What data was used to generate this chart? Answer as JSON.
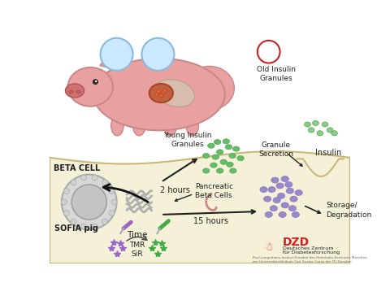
{
  "background_color": "#ffffff",
  "cell_bg_color": "#f5f0d8",
  "cell_border_color": "#c8b87a",
  "pig_color": "#e8a0a0",
  "pig_snout_color": "#d07070",
  "pancreas_color": "#c06040",
  "young_granule_color": "#66bb66",
  "young_granule_light": "#aaddaa",
  "old_granule_color": "#9988cc",
  "old_granule_light": "#ccbbee",
  "secretion_color": "#88cc88",
  "tmr_color": "#9966cc",
  "sir_color": "#44aa44",
  "dye_circle_color": "#cce8ff",
  "arrow_color": "#222222",
  "text_color": "#222222",
  "red_color": "#cc2222",
  "labels": {
    "time": "Time",
    "sofia_pig": "SOFIA pig",
    "beta_cell": "BETA CELL",
    "pancreatic": "Pancreatic\nBeta Cells",
    "young_insulin": "Young Insulin\nGranules",
    "old_insulin": "Old Insulin\nGranules",
    "granule_secretion": "Granule\nSecretion",
    "insulin": "Insulin",
    "storage": "Storage/\nDegradation",
    "two_hours": "2 hours",
    "fifteen_hours": "15 hours",
    "tmr_sir": "TMR\nSiR",
    "dzd_title": "DZD",
    "dzd_sub1": "Deutsches Zentrum",
    "dzd_sub2": "für Diabetesforschung",
    "dzd_small": "Paul-Langerhans-Institut Dresden des Helmholtz-Zentrums München\nam Universitätsklinikum Carl Gustav Carus der TU Dresden"
  }
}
